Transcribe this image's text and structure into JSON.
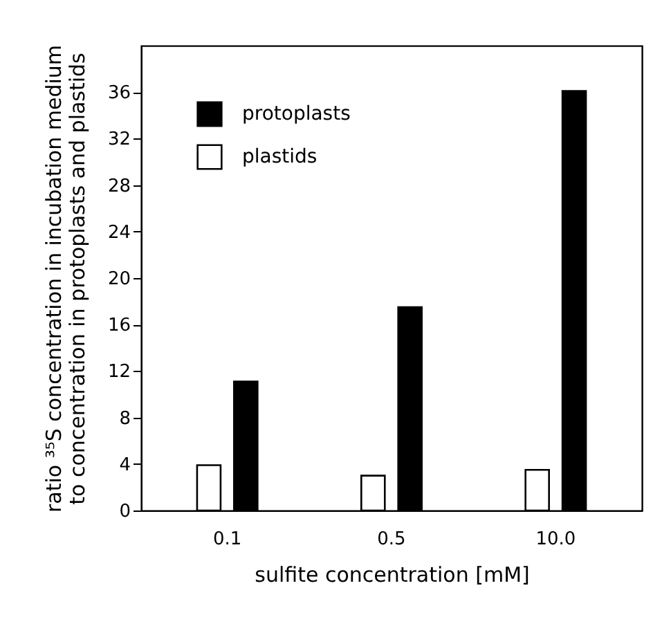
{
  "chart_data": {
    "type": "bar",
    "xlabel": "sulfite concentration [mM]",
    "ylabel": [
      "ratio ³⁵S concentration in incubation medium",
      "to concentration in protoplasts and plastids"
    ],
    "categories": [
      "0.1",
      "0.5",
      "10.0"
    ],
    "series": [
      {
        "name": "protoplasts",
        "color": "#000000",
        "values": [
          11.1,
          17.5,
          36.1
        ]
      },
      {
        "name": "plastids",
        "color": "#ffffff",
        "values": [
          3.9,
          3.0,
          3.5
        ]
      }
    ],
    "ylim": [
      0,
      40
    ],
    "yticks": [
      0,
      4,
      8,
      12,
      16,
      20,
      24,
      28,
      32,
      36
    ],
    "grid": false,
    "legend": "top left"
  }
}
